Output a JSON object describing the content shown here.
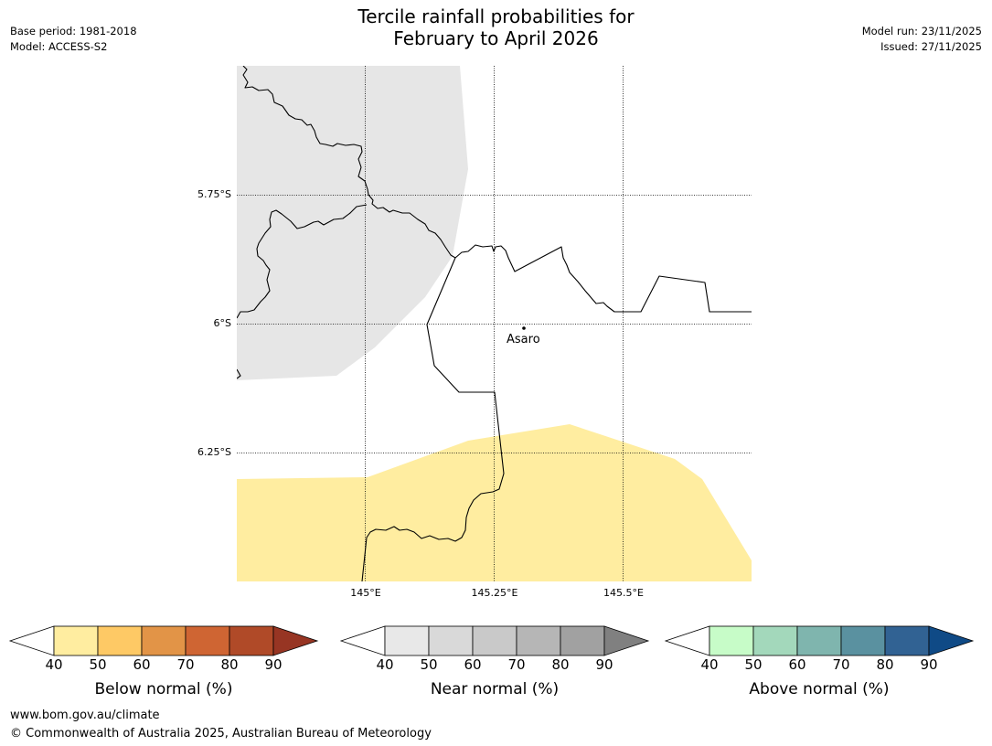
{
  "title": {
    "line1": "Tercile rainfall probabilities for",
    "line2": "February to April 2026"
  },
  "meta": {
    "base_period": "Base period: 1981-2018",
    "model": "Model: ACCESS-S2",
    "model_run": "Model run: 23/11/2025",
    "issued": "Issued: 27/11/2025"
  },
  "map": {
    "lat_labels": [
      "5.75°S",
      "6°S",
      "6.25°S"
    ],
    "lon_labels": [
      "145°E",
      "145.25°E",
      "145.5°E"
    ],
    "place": "Asaro",
    "colors": {
      "near_normal_region": "#e6e6e6",
      "below_normal_region": "#ffeda0"
    }
  },
  "colorbars": [
    {
      "label": "Below normal (%)",
      "ticks": [
        "40",
        "50",
        "60",
        "70",
        "80",
        "90"
      ],
      "colors": [
        "#ffffff",
        "#ffeda0",
        "#fec965",
        "#e29447",
        "#cf6533",
        "#b04a28",
        "#973523"
      ]
    },
    {
      "label": "Near normal (%)",
      "ticks": [
        "40",
        "50",
        "60",
        "70",
        "80",
        "90"
      ],
      "colors": [
        "#ffffff",
        "#e8e8e8",
        "#d9d9d9",
        "#c9c9c9",
        "#b6b6b6",
        "#a1a1a1",
        "#808080"
      ]
    },
    {
      "label": "Above normal (%)",
      "ticks": [
        "40",
        "50",
        "60",
        "70",
        "80",
        "90"
      ],
      "colors": [
        "#ffffff",
        "#c7fcc8",
        "#a3d8bb",
        "#7fb5ae",
        "#5a91a0",
        "#316293",
        "#0f4a86"
      ]
    }
  ],
  "footer": {
    "url": "www.bom.gov.au/climate",
    "copyright": "© Commonwealth of Australia 2025, Australian Bureau of Meteorology"
  }
}
